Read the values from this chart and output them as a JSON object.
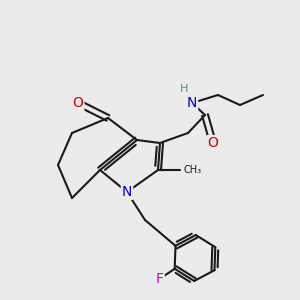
{
  "background_color": "#ebebeb",
  "bond_color": "#1a1a1a",
  "atom_colors": {
    "N": "#0000cc",
    "O": "#cc0000",
    "F": "#cc00cc",
    "H": "#4a9090",
    "C": "#1a1a1a"
  },
  "bond_lw": 1.5,
  "font_size_atom": 10,
  "font_size_h": 8
}
